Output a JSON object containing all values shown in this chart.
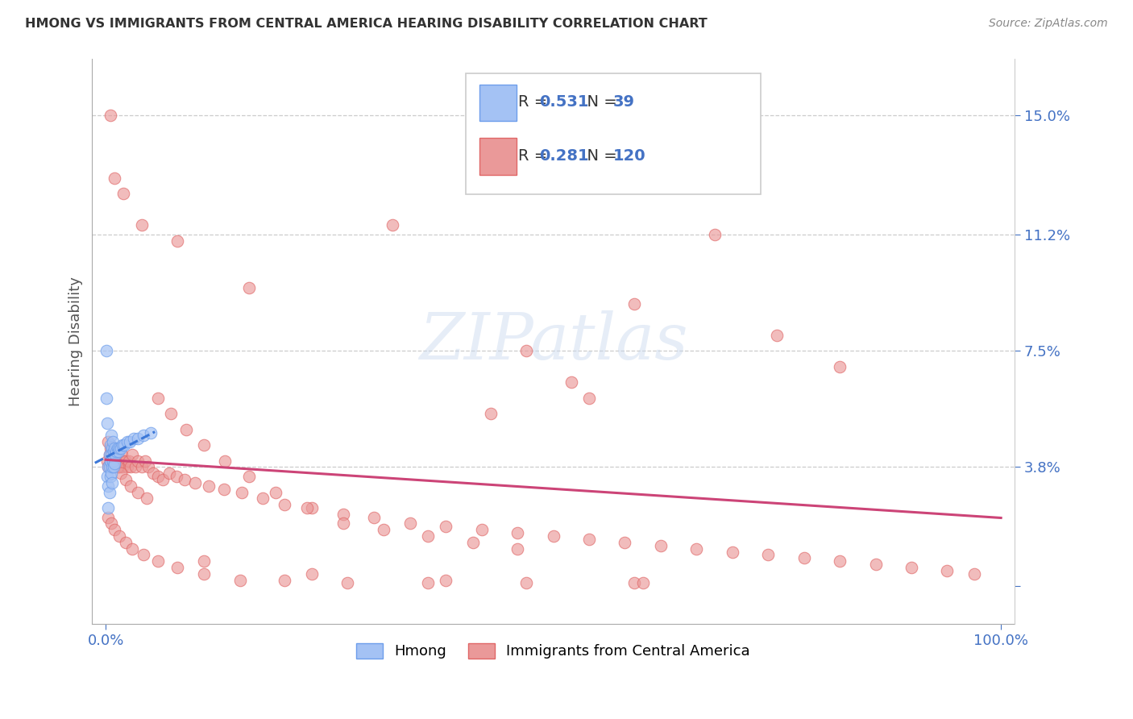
{
  "title": "HMONG VS IMMIGRANTS FROM CENTRAL AMERICA HEARING DISABILITY CORRELATION CHART",
  "source": "Source: ZipAtlas.com",
  "ylabel": "Hearing Disability",
  "ytick_vals": [
    0.0,
    0.038,
    0.075,
    0.112,
    0.15
  ],
  "ytick_labels": [
    "",
    "3.8%",
    "7.5%",
    "11.2%",
    "15.0%"
  ],
  "hmong_color": "#a4c2f4",
  "hmong_edge": "#6d9eeb",
  "ca_color": "#ea9999",
  "ca_edge": "#e06666",
  "trendline_hmong_color": "#3c78d8",
  "trendline_ca_color": "#cc4477",
  "legend_R1": "R = 0.531",
  "legend_N1": "N =  39",
  "legend_R2": "R = 0.281",
  "legend_N2": "N = 120",
  "watermark": "ZIPatlas",
  "hmong_x": [
    0.001,
    0.001,
    0.002,
    0.002,
    0.003,
    0.003,
    0.003,
    0.004,
    0.004,
    0.004,
    0.005,
    0.005,
    0.005,
    0.006,
    0.006,
    0.006,
    0.007,
    0.007,
    0.007,
    0.008,
    0.008,
    0.009,
    0.009,
    0.01,
    0.01,
    0.011,
    0.012,
    0.013,
    0.014,
    0.015,
    0.017,
    0.019,
    0.021,
    0.024,
    0.027,
    0.031,
    0.036,
    0.042,
    0.05
  ],
  "hmong_y": [
    0.075,
    0.06,
    0.052,
    0.035,
    0.038,
    0.032,
    0.025,
    0.042,
    0.038,
    0.03,
    0.045,
    0.04,
    0.035,
    0.048,
    0.042,
    0.036,
    0.044,
    0.038,
    0.033,
    0.046,
    0.04,
    0.043,
    0.038,
    0.044,
    0.039,
    0.042,
    0.043,
    0.044,
    0.043,
    0.044,
    0.044,
    0.045,
    0.045,
    0.046,
    0.046,
    0.047,
    0.047,
    0.048,
    0.049
  ],
  "ca_x": [
    0.002,
    0.003,
    0.004,
    0.005,
    0.006,
    0.007,
    0.008,
    0.009,
    0.01,
    0.011,
    0.012,
    0.013,
    0.014,
    0.015,
    0.016,
    0.017,
    0.018,
    0.019,
    0.02,
    0.022,
    0.024,
    0.026,
    0.028,
    0.03,
    0.033,
    0.036,
    0.04,
    0.044,
    0.048,
    0.053,
    0.058,
    0.064,
    0.071,
    0.079,
    0.088,
    0.1,
    0.115,
    0.132,
    0.152,
    0.175,
    0.2,
    0.23,
    0.265,
    0.3,
    0.34,
    0.38,
    0.42,
    0.46,
    0.5,
    0.54,
    0.58,
    0.62,
    0.66,
    0.7,
    0.74,
    0.78,
    0.82,
    0.86,
    0.9,
    0.94,
    0.97,
    0.003,
    0.005,
    0.007,
    0.01,
    0.013,
    0.017,
    0.022,
    0.028,
    0.036,
    0.046,
    0.058,
    0.073,
    0.09,
    0.11,
    0.133,
    0.16,
    0.19,
    0.225,
    0.265,
    0.31,
    0.36,
    0.41,
    0.46,
    0.005,
    0.01,
    0.02,
    0.04,
    0.08,
    0.16,
    0.32,
    0.64,
    0.59,
    0.68,
    0.75,
    0.82,
    0.54,
    0.47,
    0.52,
    0.43,
    0.003,
    0.006,
    0.01,
    0.015,
    0.022,
    0.03,
    0.042,
    0.058,
    0.08,
    0.11,
    0.15,
    0.2,
    0.27,
    0.36,
    0.47,
    0.59,
    0.11,
    0.23,
    0.38,
    0.6
  ],
  "ca_y": [
    0.04,
    0.038,
    0.042,
    0.04,
    0.038,
    0.042,
    0.04,
    0.042,
    0.038,
    0.04,
    0.042,
    0.04,
    0.038,
    0.04,
    0.038,
    0.04,
    0.042,
    0.038,
    0.04,
    0.04,
    0.038,
    0.04,
    0.038,
    0.042,
    0.038,
    0.04,
    0.038,
    0.04,
    0.038,
    0.036,
    0.035,
    0.034,
    0.036,
    0.035,
    0.034,
    0.033,
    0.032,
    0.031,
    0.03,
    0.028,
    0.026,
    0.025,
    0.023,
    0.022,
    0.02,
    0.019,
    0.018,
    0.017,
    0.016,
    0.015,
    0.014,
    0.013,
    0.012,
    0.011,
    0.01,
    0.009,
    0.008,
    0.007,
    0.006,
    0.005,
    0.004,
    0.046,
    0.044,
    0.042,
    0.04,
    0.038,
    0.036,
    0.034,
    0.032,
    0.03,
    0.028,
    0.06,
    0.055,
    0.05,
    0.045,
    0.04,
    0.035,
    0.03,
    0.025,
    0.02,
    0.018,
    0.016,
    0.014,
    0.012,
    0.15,
    0.13,
    0.125,
    0.115,
    0.11,
    0.095,
    0.115,
    0.14,
    0.09,
    0.112,
    0.08,
    0.07,
    0.06,
    0.075,
    0.065,
    0.055,
    0.022,
    0.02,
    0.018,
    0.016,
    0.014,
    0.012,
    0.01,
    0.008,
    0.006,
    0.004,
    0.002,
    0.002,
    0.001,
    0.001,
    0.001,
    0.001,
    0.008,
    0.004,
    0.002,
    0.001
  ],
  "xlim": [
    -0.015,
    1.015
  ],
  "ylim": [
    -0.012,
    0.168
  ]
}
